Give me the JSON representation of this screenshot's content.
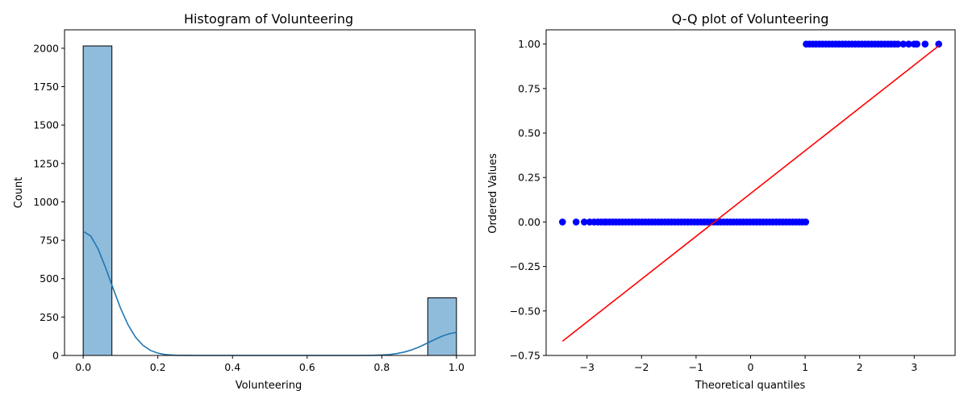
{
  "chart_data": [
    {
      "type": "bar",
      "title": "Histogram of Volunteering",
      "xlabel": "Volunteering",
      "ylabel": "Count",
      "xlim": [
        -0.05,
        1.05
      ],
      "ylim": [
        0,
        2120
      ],
      "xticks": [
        0.0,
        0.2,
        0.4,
        0.6,
        0.8,
        1.0
      ],
      "xtick_labels": [
        "0.0",
        "0.2",
        "0.4",
        "0.6",
        "0.8",
        "1.0"
      ],
      "yticks": [
        0,
        250,
        500,
        750,
        1000,
        1250,
        1500,
        1750,
        2000
      ],
      "ytick_labels": [
        "0",
        "250",
        "500",
        "750",
        "1000",
        "1250",
        "1500",
        "1750",
        "2000"
      ],
      "bins": [
        {
          "x0": 0.0,
          "x1": 0.0769,
          "count": 2015
        },
        {
          "x0": 0.9231,
          "x1": 1.0,
          "count": 375
        }
      ],
      "kde": {
        "x": [
          0.0,
          0.02,
          0.04,
          0.06,
          0.08,
          0.1,
          0.12,
          0.14,
          0.16,
          0.18,
          0.2,
          0.22,
          0.25,
          0.3,
          0.4,
          0.5,
          0.6,
          0.7,
          0.75,
          0.78,
          0.8,
          0.82,
          0.84,
          0.86,
          0.88,
          0.9,
          0.92,
          0.94,
          0.96,
          0.98,
          1.0
        ],
        "y": [
          808,
          778,
          693,
          571,
          437,
          308,
          200,
          119,
          66,
          33,
          15,
          6,
          1,
          0,
          0,
          0,
          0,
          0,
          0,
          1,
          3,
          6,
          12,
          22,
          36,
          55,
          78,
          102,
          124,
          141,
          150
        ]
      },
      "bar_color": "#8fbcdb",
      "line_color": "#1f77b4"
    },
    {
      "type": "scatter",
      "title": "Q-Q plot of Volunteering",
      "xlabel": "Theoretical quantiles",
      "ylabel": "Ordered Values",
      "xlim": [
        -3.75,
        3.75
      ],
      "ylim": [
        -0.75,
        1.08
      ],
      "xticks": [
        -3,
        -2,
        -1,
        0,
        1,
        2,
        3
      ],
      "xtick_labels": [
        "−3",
        "−2",
        "−1",
        "0",
        "1",
        "2",
        "3"
      ],
      "yticks": [
        -0.75,
        -0.5,
        -0.25,
        0.0,
        0.25,
        0.5,
        0.75,
        1.0
      ],
      "ytick_labels": [
        "−0.75",
        "−0.50",
        "−0.25",
        "0.00",
        "0.25",
        "0.50",
        "0.75",
        "1.00"
      ],
      "points_zero": {
        "x": [
          -3.45,
          -3.2,
          -3.05,
          -2.95,
          -2.87,
          -2.8,
          -2.74,
          -2.68
        ],
        "dense_range": [
          -2.65,
          1.01
        ],
        "y": 0
      },
      "points_one": {
        "x": [
          2.7,
          2.8,
          2.9,
          3.0,
          3.05,
          3.2,
          3.45
        ],
        "dense_range": [
          1.02,
          2.65
        ],
        "y": 1
      },
      "fit_line": {
        "x": [
          -3.45,
          3.45
        ],
        "y": [
          -0.67,
          0.99
        ]
      },
      "point_color": "#0000ff",
      "line_color": "#ff0000"
    }
  ]
}
